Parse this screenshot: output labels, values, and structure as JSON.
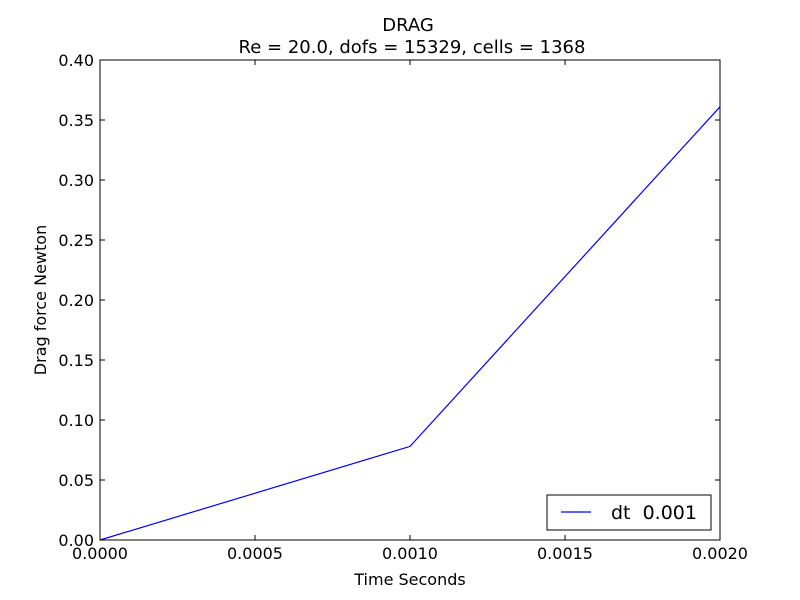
{
  "chart_data": {
    "type": "line",
    "title": "DRAG",
    "subtitle": "Re = 20.0, dofs = 15329, cells = 1368",
    "xlabel": "Time Seconds",
    "ylabel": "Drag force Newton",
    "xlim": [
      0.0,
      0.002
    ],
    "ylim": [
      0.0,
      0.4
    ],
    "xticks": [
      "0.0000",
      "0.0005",
      "0.0010",
      "0.0015",
      "0.0020"
    ],
    "yticks": [
      "0.00",
      "0.05",
      "0.10",
      "0.15",
      "0.20",
      "0.25",
      "0.30",
      "0.35",
      "0.40"
    ],
    "grid": false,
    "legend_position": "lower-right",
    "series": [
      {
        "name": "dt  0.001",
        "color": "#0000ff",
        "x": [
          0.0,
          0.001,
          0.002
        ],
        "y": [
          0.0,
          0.078,
          0.361
        ]
      }
    ]
  }
}
